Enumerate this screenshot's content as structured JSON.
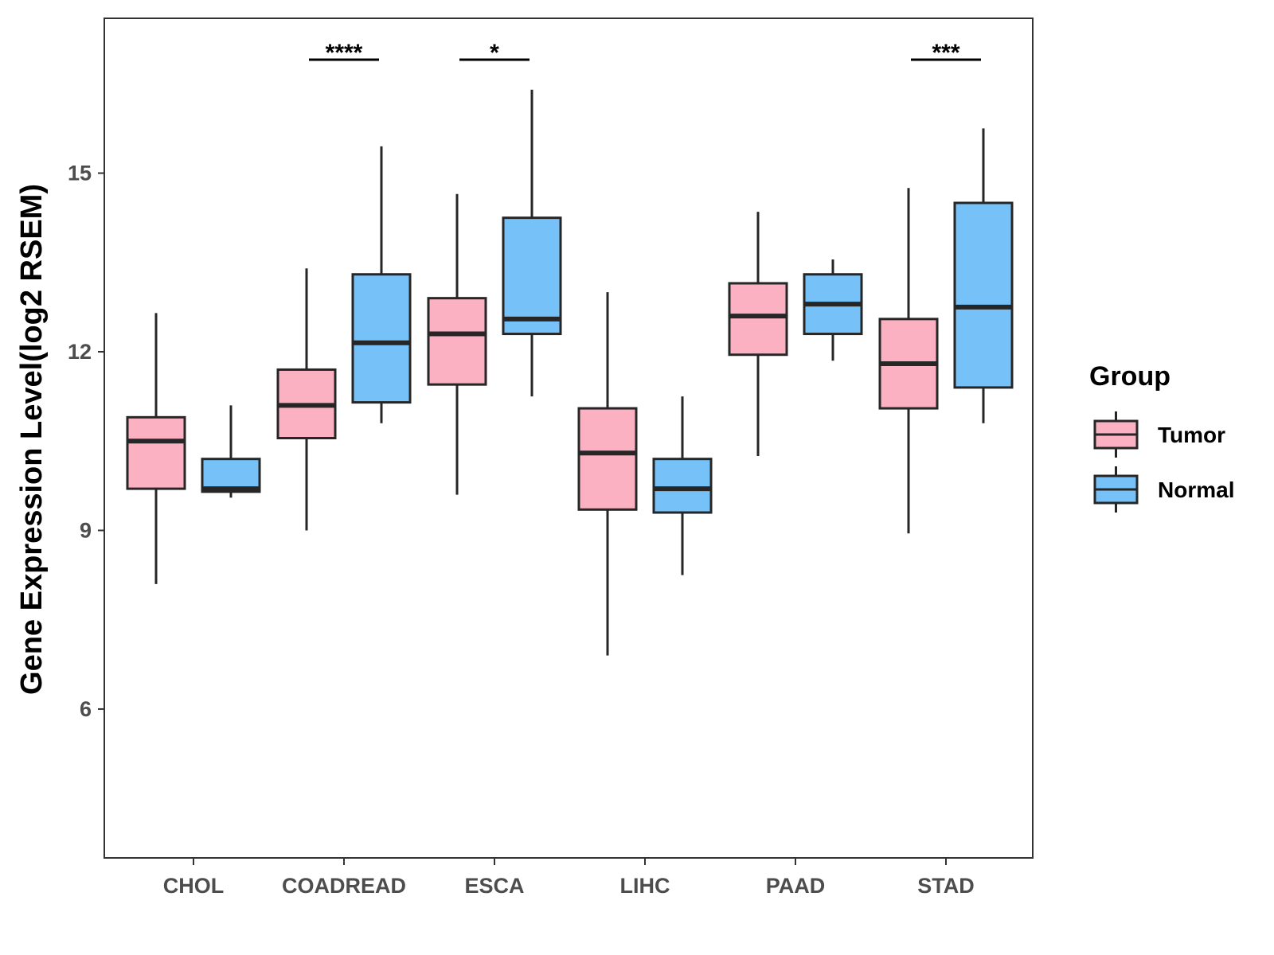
{
  "chart_data": {
    "type": "boxplot",
    "title": "",
    "xlabel": "",
    "ylabel": "Gene Expression Level(log2 RSEM)",
    "ylim": [
      3.5,
      17.6
    ],
    "yticks": [
      6,
      9,
      12,
      15
    ],
    "categories": [
      "CHOL",
      "COADREAD",
      "ESCA",
      "LIHC",
      "PAAD",
      "STAD"
    ],
    "series": [
      {
        "name": "Tumor",
        "color": "#FBB1C2",
        "boxes": [
          {
            "whisker_low": 8.1,
            "q1": 9.7,
            "median": 10.5,
            "q3": 10.9,
            "whisker_high": 12.65
          },
          {
            "whisker_low": 9.0,
            "q1": 10.55,
            "median": 11.1,
            "q3": 11.7,
            "whisker_high": 13.4
          },
          {
            "whisker_low": 9.6,
            "q1": 11.45,
            "median": 12.3,
            "q3": 12.9,
            "whisker_high": 14.65
          },
          {
            "whisker_low": 6.9,
            "q1": 9.35,
            "median": 10.3,
            "q3": 11.05,
            "whisker_high": 13.0
          },
          {
            "whisker_low": 10.25,
            "q1": 11.95,
            "median": 12.6,
            "q3": 13.15,
            "whisker_high": 14.35
          },
          {
            "whisker_low": 8.95,
            "q1": 11.05,
            "median": 11.8,
            "q3": 12.55,
            "whisker_high": 14.75
          }
        ]
      },
      {
        "name": "Normal",
        "color": "#76C1F8",
        "boxes": [
          {
            "whisker_low": 9.55,
            "q1": 9.65,
            "median": 9.7,
            "q3": 10.2,
            "whisker_high": 11.1
          },
          {
            "whisker_low": 10.8,
            "q1": 11.15,
            "median": 12.15,
            "q3": 13.3,
            "whisker_high": 15.45
          },
          {
            "whisker_low": 11.25,
            "q1": 12.3,
            "median": 12.55,
            "q3": 14.25,
            "whisker_high": 16.4
          },
          {
            "whisker_low": 8.25,
            "q1": 9.3,
            "median": 9.7,
            "q3": 10.2,
            "whisker_high": 11.25
          },
          {
            "whisker_low": 11.85,
            "q1": 12.3,
            "median": 12.8,
            "q3": 13.3,
            "whisker_high": 13.55
          },
          {
            "whisker_low": 10.8,
            "q1": 11.4,
            "median": 12.75,
            "q3": 14.5,
            "whisker_high": 15.75
          }
        ]
      }
    ],
    "significance": [
      {
        "category": "COADREAD",
        "label": "****"
      },
      {
        "category": "ESCA",
        "label": "*"
      },
      {
        "category": "STAD",
        "label": "***"
      }
    ],
    "legend": {
      "title": "Group",
      "position": "right",
      "items": [
        "Tumor",
        "Normal"
      ]
    },
    "grid": false
  }
}
